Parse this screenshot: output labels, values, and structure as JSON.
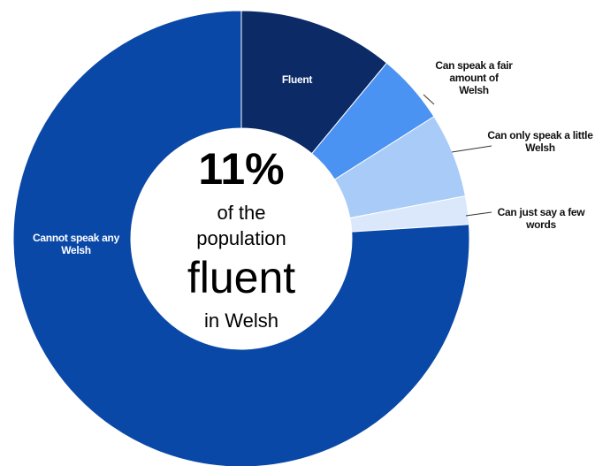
{
  "chart_data": {
    "type": "donut",
    "categories": [
      "Fluent",
      "Can speak a fair amount of Welsh",
      "Can only speak a little Welsh",
      "Can just say a few words",
      "Cannot speak any Welsh"
    ],
    "values": [
      11,
      5,
      6,
      2,
      76
    ],
    "colors": [
      "#0b2a66",
      "#4b93f2",
      "#a9cbf8",
      "#dbe8fb",
      "#0a48a8"
    ],
    "center_text": [
      "11%",
      "of the",
      "population",
      "fluent",
      "in Welsh"
    ]
  }
}
